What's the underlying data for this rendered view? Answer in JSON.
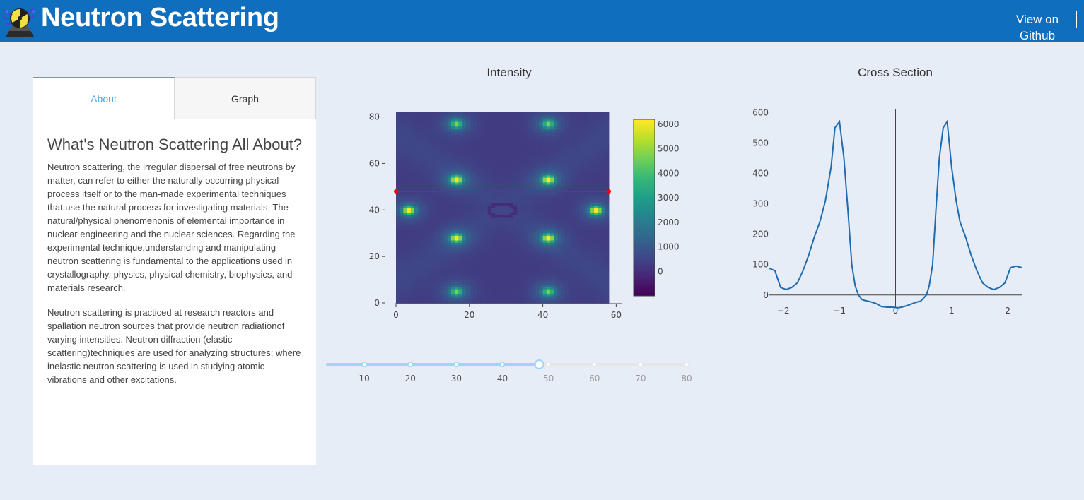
{
  "header": {
    "title": "Neutron Scattering",
    "github_label": "View on Github",
    "background": "#0f6ebd"
  },
  "tabs": [
    {
      "label": "About",
      "active": true
    },
    {
      "label": "Graph",
      "active": false
    }
  ],
  "about": {
    "heading": "What's Neutron Scattering All About?",
    "paragraphs": [
      "Neutron scattering, the irregular dispersal of free neutrons by matter, can refer to either the naturally occurring physical process itself or to the man-made experimental techniques that use the natural process for investigating materials. The natural/physical phenomenonis of elemental importance in nuclear engineering and the nuclear sciences. Regarding the experimental technique,understanding and manipulating neutron scattering is fundamental to the applications used in crystallography, physics, physical chemistry, biophysics, and materials research.",
      "Neutron scattering is practiced at research reactors and spallation neutron sources that provide neutron radiationof varying intensities. Neutron diffraction (elastic scattering)techniques are used for analyzing structures; where inelastic neutron scattering is used in studying atomic vibrations and other excitations."
    ]
  },
  "slider": {
    "value": 48,
    "min": 2,
    "max": 80,
    "marks": [
      "10",
      "20",
      "30",
      "40",
      "50",
      "60",
      "70",
      "80"
    ],
    "accent": "#9fd4f4"
  },
  "chart_data": [
    {
      "type": "heatmap",
      "title": "Intensity",
      "xlim": [
        0,
        58
      ],
      "ylim": [
        0,
        82
      ],
      "xticks": [
        "0",
        "20",
        "40",
        "60"
      ],
      "yticks": [
        "0",
        "20",
        "40",
        "60",
        "80"
      ],
      "colorscale": "viridis",
      "colorbar_ticks": [
        "0",
        "1000",
        "2000",
        "3000",
        "4000",
        "5000",
        "6000"
      ],
      "colorbar_range": [
        -1000,
        6200
      ],
      "peaks": [
        {
          "x": 16.5,
          "y": 53,
          "value": 5600
        },
        {
          "x": 41.5,
          "y": 53,
          "value": 5600
        },
        {
          "x": 3.5,
          "y": 40,
          "value": 5700
        },
        {
          "x": 54.5,
          "y": 40,
          "value": 5700
        },
        {
          "x": 16.5,
          "y": 28,
          "value": 5500
        },
        {
          "x": 41.5,
          "y": 28,
          "value": 5500
        },
        {
          "x": 16.5,
          "y": 5,
          "value": 3500
        },
        {
          "x": 41.5,
          "y": 5,
          "value": 3500
        },
        {
          "x": 16.5,
          "y": 77,
          "value": 3500
        },
        {
          "x": 41.5,
          "y": 77,
          "value": 3500
        }
      ],
      "cut_line_y": 48,
      "cut_line_color": "#ff0000"
    },
    {
      "type": "line",
      "title": "Cross Section",
      "xlim": [
        -2.25,
        2.25
      ],
      "ylim": [
        -40,
        610
      ],
      "xticks": [
        "−2",
        "−1",
        "0",
        "1",
        "2"
      ],
      "yticks": [
        "0",
        "100",
        "200",
        "300",
        "400",
        "500",
        "600"
      ],
      "series": [
        {
          "color": "#1f6cb0",
          "x": [
            -2.25,
            -2.15,
            -2.05,
            -1.95,
            -1.85,
            -1.75,
            -1.65,
            -1.55,
            -1.45,
            -1.35,
            -1.25,
            -1.15,
            -1.08,
            -1.0,
            -0.92,
            -0.85,
            -0.78,
            -0.72,
            -0.66,
            -0.6,
            -0.55,
            -0.45,
            -0.35,
            -0.25,
            -0.15,
            -0.05,
            0.05,
            0.15,
            0.25,
            0.35,
            0.45,
            0.55,
            0.6,
            0.66,
            0.72,
            0.78,
            0.85,
            0.92,
            1.0,
            1.08,
            1.15,
            1.25,
            1.35,
            1.45,
            1.55,
            1.65,
            1.75,
            1.85,
            1.95,
            2.05,
            2.15,
            2.25
          ],
          "y": [
            88,
            80,
            25,
            18,
            25,
            40,
            80,
            130,
            190,
            240,
            310,
            420,
            550,
            570,
            450,
            280,
            100,
            30,
            0,
            -15,
            -18,
            -22,
            -28,
            -38,
            -40,
            -40,
            -42,
            -38,
            -32,
            -25,
            -20,
            0,
            30,
            100,
            280,
            450,
            550,
            570,
            420,
            310,
            240,
            190,
            130,
            80,
            40,
            25,
            18,
            25,
            40,
            90,
            95,
            90
          ]
        }
      ]
    }
  ]
}
